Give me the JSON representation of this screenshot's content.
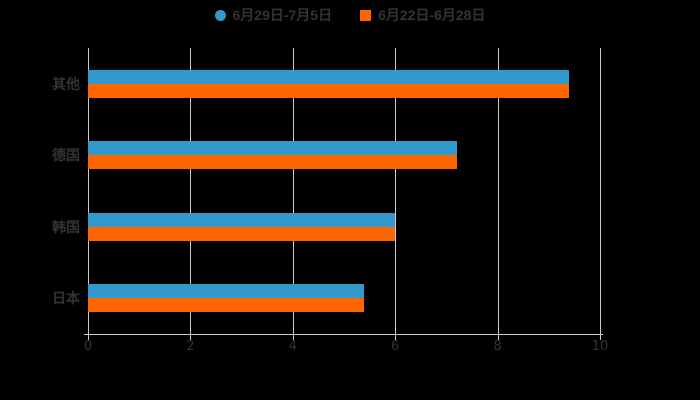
{
  "chart_data": {
    "type": "bar",
    "orientation": "horizontal",
    "categories": [
      "其他",
      "德国",
      "韩国",
      "日本"
    ],
    "series": [
      {
        "name": "6月29日-7月5日",
        "color": "#3398cb",
        "marker": "circle",
        "values": [
          9.4,
          7.2,
          6.0,
          5.4
        ]
      },
      {
        "name": "6月22日-6月28日",
        "color": "#ff6600",
        "marker": "square",
        "values": [
          9.4,
          7.2,
          6.0,
          5.4
        ]
      }
    ],
    "xlim": [
      0,
      10
    ],
    "x_ticks": [
      0,
      2,
      4,
      6,
      8,
      10
    ],
    "grid": true,
    "legend_position": "top-center"
  },
  "style": {
    "background": "#000000",
    "grid_color": "#cccccc",
    "axis_color": "#cccccc",
    "label_color": "#333333",
    "value_label_color": "#000000"
  }
}
